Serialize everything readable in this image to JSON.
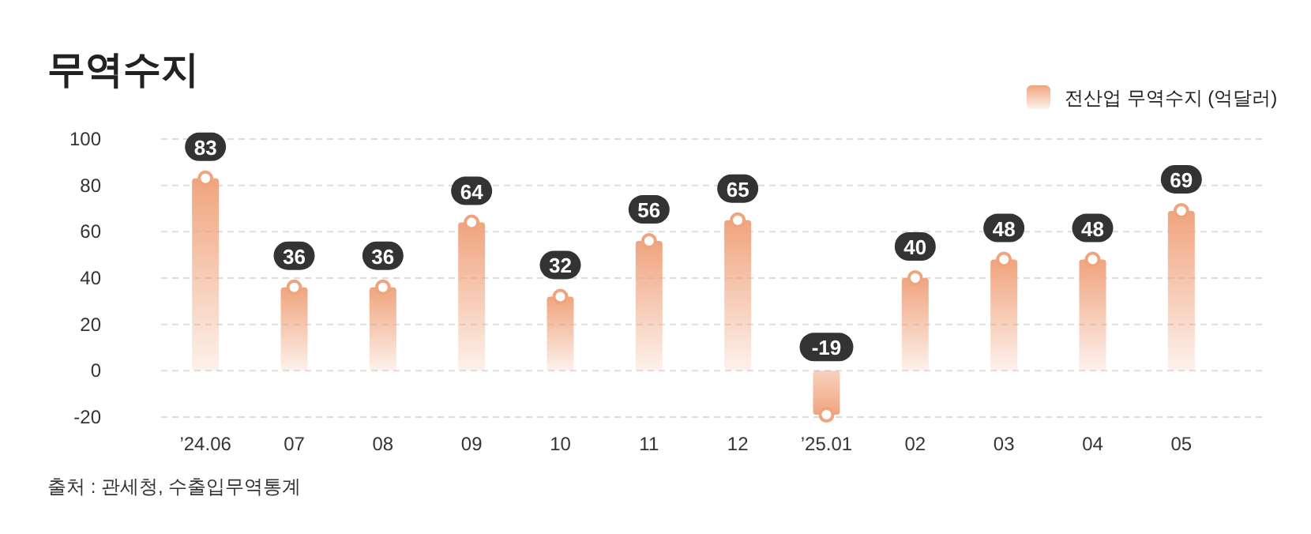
{
  "chart_data": {
    "type": "bar",
    "title": "무역수지",
    "categories": [
      "’24.06",
      "07",
      "08",
      "09",
      "10",
      "11",
      "12",
      "’25.01",
      "02",
      "03",
      "04",
      "05"
    ],
    "series": [
      {
        "name": "전산업 무역수지 (억달러)",
        "color": "#f0a47e",
        "values": [
          83,
          36,
          36,
          64,
          32,
          56,
          65,
          -19,
          40,
          48,
          48,
          69
        ]
      }
    ],
    "ylim": [
      -20,
      100
    ],
    "yticks": [
      -20,
      0,
      20,
      40,
      60,
      80,
      100
    ],
    "grid": "y",
    "legend": "top right",
    "data_labels": true,
    "marker": "circle",
    "annotations": [
      "출처 : 관세청, 수출입무역통계"
    ]
  }
}
